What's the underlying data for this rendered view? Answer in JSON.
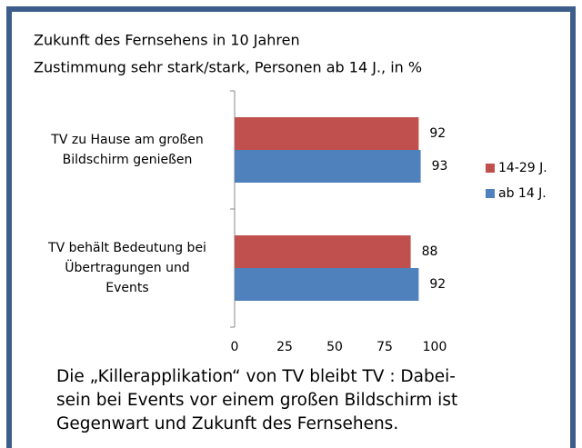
{
  "chart_data": {
    "type": "bar",
    "orientation": "horizontal",
    "title": "Zukunft des Fernsehens in 10 Jahren",
    "subtitle": "Zustimmung sehr stark/stark, Personen ab 14 J., in %",
    "categories": [
      "TV zu Hause am großen\nBildschirm genießen",
      "TV behält Bedeutung bei\nÜbertragungen und\nEvents"
    ],
    "series": [
      {
        "name": "14-29 J.",
        "color": "#c0504d",
        "values": [
          92,
          88
        ]
      },
      {
        "name": "ab 14 J.",
        "color": "#4f81bd",
        "values": [
          93,
          92
        ]
      }
    ],
    "xlim": [
      0,
      100
    ],
    "xticks": [
      0,
      25,
      50,
      75,
      100
    ],
    "grid": false,
    "legend": "right",
    "caption": "Die „Killerapplikation“ von TV bleibt TV : Dabei-\nsein bei Events vor einem großen Bildschirm ist\nGegenwart und Zukunft des Fernsehens."
  }
}
